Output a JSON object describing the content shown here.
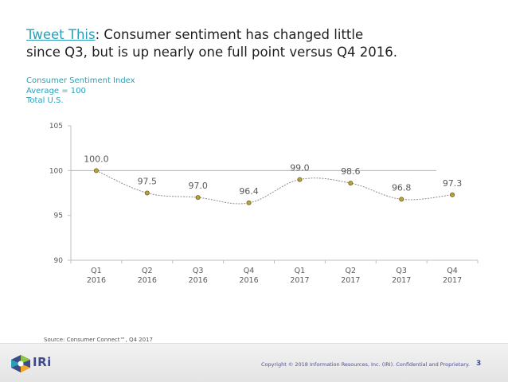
{
  "headline": {
    "link_text": "Tweet This",
    "line1_rest": ": Consumer sentiment has changed little",
    "line2": "since Q3, but is up nearly one full point versus Q4 2016."
  },
  "subtitle": {
    "line1": "Consumer Sentiment Index",
    "line2": "Average = 100",
    "line3": "Total U.S."
  },
  "chart_data": {
    "type": "line",
    "title": "Consumer Sentiment Index",
    "categories": [
      [
        "Q1",
        "2016"
      ],
      [
        "Q2",
        "2016"
      ],
      [
        "Q3",
        "2016"
      ],
      [
        "Q4",
        "2016"
      ],
      [
        "Q1",
        "2017"
      ],
      [
        "Q2",
        "2017"
      ],
      [
        "Q3",
        "2017"
      ],
      [
        "Q4",
        "2017"
      ]
    ],
    "series": [
      {
        "name": "Consumer Sentiment Index",
        "values": [
          100.0,
          97.5,
          97.0,
          96.4,
          99.0,
          98.6,
          96.8,
          97.3
        ],
        "labels": [
          "100.0",
          "97.5",
          "97.0",
          "96.4",
          "99.0",
          "98.6",
          "96.8",
          "97.3"
        ]
      }
    ],
    "reference_line": 100,
    "ylim": [
      90,
      105
    ],
    "yticks": [
      90,
      95,
      100,
      105
    ],
    "xlabel": "",
    "ylabel": "",
    "grid": false,
    "colors": {
      "line": "#8c8c8c",
      "marker_fill": "#b8a23a",
      "marker_stroke": "#6e6230",
      "reference": "#b0b0b0",
      "axis": "#bfbfbf",
      "label": "#595959"
    }
  },
  "source": "Source: Consumer Connect™, Q4 2017",
  "footer": {
    "logo_text": "IRi",
    "copyright": "Copyright © 2018 Information Resources, Inc. (IRI). Confidential and Proprietary.",
    "page_number": "3"
  },
  "colors": {
    "accent": "#2aa0b8",
    "brand": "#3f4a8a"
  }
}
